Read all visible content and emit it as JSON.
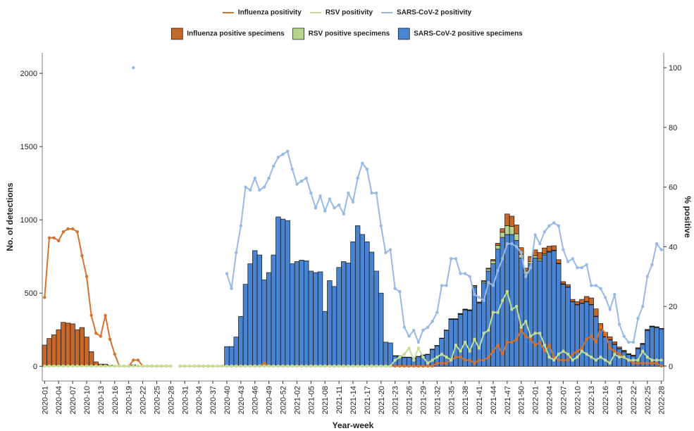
{
  "chart_data": {
    "type": "bar",
    "x_label": "Year-week",
    "y_label": "No. of detections",
    "y2_label": "% positive",
    "categories": [
      "2020-01",
      null,
      null,
      "2020-04",
      null,
      null,
      "2020-07",
      null,
      null,
      "2020-10",
      null,
      null,
      "2020-13",
      null,
      null,
      "2020-16",
      null,
      null,
      "2020-19",
      null,
      null,
      "2020-22",
      null,
      null,
      "2020-25",
      null,
      null,
      "2020-28",
      null,
      null,
      "2020-31",
      null,
      null,
      "2020-34",
      null,
      null,
      "2020-37",
      null,
      null,
      "2020-40",
      null,
      null,
      "2020-43",
      null,
      null,
      "2020-46",
      null,
      null,
      "2020-49",
      null,
      null,
      "2020-52",
      null,
      null,
      "2021-02",
      null,
      null,
      "2021-05",
      null,
      null,
      "2021-08",
      null,
      null,
      "2021-11",
      null,
      null,
      "2021-14",
      null,
      null,
      "2021-17",
      null,
      null,
      "2021-20",
      null,
      null,
      "2021-23",
      null,
      null,
      "2021-26",
      null,
      null,
      "2021-29",
      null,
      null,
      "2021-32",
      null,
      null,
      "2021-35",
      null,
      null,
      "2021-38",
      null,
      null,
      "2021-41",
      null,
      null,
      "2021-44",
      null,
      null,
      "2021-47",
      null,
      null,
      "2021-50",
      null,
      null,
      "2022-01",
      null,
      null,
      "2022-04",
      null,
      null,
      "2022-07",
      null,
      null,
      "2022-10",
      null,
      null,
      "2022-13",
      null,
      null,
      "2022-16",
      null,
      null,
      "2022-19",
      null,
      null,
      "2022-22",
      null,
      null,
      "2022-25",
      null,
      null,
      "2022-28"
    ],
    "ylim": [
      -100,
      2140
    ],
    "yticks": [
      0,
      500,
      1000,
      1500,
      2000
    ],
    "y2lim": [
      -5,
      105
    ],
    "y2ticks": [
      0,
      20,
      40,
      60,
      80,
      100
    ],
    "series": [
      {
        "name": "Influenza positivity",
        "type": "line",
        "axis": "y2",
        "color": "#d4722f",
        "values": [
          23,
          43,
          43,
          42,
          45,
          46,
          46,
          45,
          37,
          30,
          17,
          11,
          10,
          17,
          9,
          4,
          0,
          0,
          0,
          2,
          2,
          0,
          0,
          0,
          0,
          0,
          0,
          0,
          null,
          0,
          0,
          0,
          0,
          0,
          0,
          0,
          0,
          0,
          0,
          0,
          0,
          0,
          0,
          0,
          0,
          0,
          0,
          1,
          0,
          0,
          0,
          0,
          0,
          0,
          0,
          0,
          0,
          0,
          0,
          0,
          0,
          0,
          0,
          0,
          0,
          0,
          0,
          0,
          0,
          0,
          0,
          0,
          0,
          0,
          0,
          0,
          0,
          0,
          0,
          0,
          0,
          0,
          0,
          0,
          1,
          1,
          1,
          2,
          3,
          3,
          2,
          2,
          1,
          2,
          2,
          3,
          5,
          7,
          4,
          8,
          8,
          9,
          12,
          10,
          9,
          7,
          8,
          5,
          7,
          3,
          2,
          2,
          2,
          4,
          5,
          6,
          9,
          10,
          8,
          13,
          11,
          6,
          5,
          4,
          3,
          2,
          1,
          1,
          1,
          1,
          1,
          1,
          0
        ]
      },
      {
        "name": "RSV positivity",
        "type": "line",
        "axis": "y2",
        "color": "#c2df98",
        "values": [
          0,
          0,
          0,
          0,
          0,
          0,
          0,
          0,
          0,
          0,
          0,
          0,
          0,
          0,
          0,
          0,
          0,
          0,
          0,
          0,
          0,
          0,
          0,
          0,
          0,
          0,
          0,
          0,
          null,
          0,
          0,
          0,
          0,
          0,
          0,
          0,
          0,
          0,
          0,
          0,
          0,
          0,
          0,
          0,
          0,
          0,
          0,
          0,
          0,
          0,
          0,
          0,
          0,
          0,
          0,
          0,
          0,
          0,
          0,
          0,
          0,
          0,
          0,
          0,
          0,
          0,
          0,
          0,
          0,
          0,
          0,
          0,
          0,
          0,
          0,
          2,
          3,
          4,
          6,
          2,
          6,
          3,
          1,
          2,
          3,
          4,
          3,
          2,
          7,
          5,
          8,
          5,
          9,
          6,
          11,
          12,
          18,
          18,
          22,
          25,
          19,
          20,
          13,
          15,
          10,
          11,
          11,
          7,
          3,
          2,
          4,
          5,
          4,
          2,
          3,
          5,
          4,
          3,
          2,
          3,
          2,
          1,
          4,
          3,
          3,
          2,
          2,
          2,
          5,
          3,
          2,
          2,
          2
        ]
      },
      {
        "name": "SARS-CoV-2 positivity",
        "type": "line",
        "axis": "y2",
        "color": "#98b9e6",
        "values": [
          null,
          null,
          null,
          null,
          null,
          null,
          null,
          null,
          null,
          null,
          null,
          null,
          null,
          null,
          null,
          null,
          null,
          null,
          null,
          100,
          null,
          null,
          null,
          null,
          null,
          null,
          null,
          null,
          null,
          null,
          null,
          null,
          null,
          null,
          null,
          null,
          null,
          null,
          null,
          31,
          26,
          38,
          47,
          60,
          59,
          63,
          59,
          60,
          63,
          67,
          70,
          71,
          72,
          66,
          61,
          62,
          63,
          58,
          53,
          57,
          52,
          56,
          53,
          54,
          51,
          58,
          55,
          63,
          68,
          66,
          58,
          58,
          47,
          38,
          39,
          26,
          25,
          13,
          10,
          12,
          8,
          12,
          13,
          15,
          18,
          27,
          27,
          36,
          36,
          31,
          31,
          30,
          24,
          23,
          22,
          28,
          27,
          32,
          36,
          41,
          41,
          40,
          38,
          30,
          33,
          44,
          41,
          45,
          47,
          48,
          47,
          39,
          35,
          36,
          33,
          33,
          34,
          27,
          27,
          26,
          23,
          19,
          24,
          14,
          10,
          8,
          8,
          16,
          20,
          30,
          34,
          41,
          39
        ]
      },
      {
        "name": "Influenza positive specimens",
        "type": "bar",
        "color": "#c4682c",
        "values": [
          145,
          190,
          215,
          250,
          300,
          295,
          290,
          250,
          265,
          200,
          100,
          30,
          15,
          15,
          8,
          5,
          0,
          0,
          0,
          0,
          0,
          0,
          0,
          0,
          0,
          0,
          0,
          0,
          0,
          0,
          0,
          0,
          0,
          0,
          0,
          0,
          0,
          0,
          0,
          0,
          0,
          0,
          0,
          0,
          0,
          0,
          0,
          0,
          0,
          0,
          0,
          0,
          0,
          0,
          0,
          0,
          0,
          0,
          0,
          0,
          0,
          0,
          0,
          0,
          0,
          0,
          0,
          0,
          0,
          0,
          0,
          0,
          0,
          0,
          0,
          0,
          0,
          0,
          0,
          0,
          0,
          0,
          0,
          0,
          0,
          0,
          0,
          2,
          2,
          3,
          3,
          3,
          4,
          4,
          5,
          5,
          10,
          15,
          25,
          80,
          70,
          60,
          45,
          20,
          35,
          40,
          45,
          40,
          35,
          30,
          25,
          15,
          15,
          15,
          20,
          25,
          35,
          45,
          50,
          40,
          30,
          20,
          15,
          10,
          8,
          5,
          5,
          5,
          5,
          5,
          3,
          3,
          2
        ]
      },
      {
        "name": "RSV positive specimens",
        "type": "bar",
        "color": "#b6d38f",
        "values": [
          0,
          0,
          0,
          0,
          0,
          0,
          0,
          0,
          0,
          0,
          0,
          0,
          0,
          0,
          0,
          0,
          0,
          0,
          0,
          0,
          0,
          0,
          0,
          0,
          0,
          0,
          0,
          0,
          0,
          0,
          0,
          0,
          0,
          0,
          0,
          0,
          0,
          0,
          0,
          0,
          0,
          0,
          0,
          0,
          0,
          0,
          0,
          0,
          0,
          0,
          0,
          0,
          0,
          0,
          0,
          0,
          0,
          0,
          0,
          0,
          0,
          0,
          0,
          0,
          0,
          0,
          0,
          0,
          0,
          0,
          0,
          0,
          0,
          0,
          0,
          3,
          3,
          3,
          3,
          3,
          3,
          3,
          3,
          3,
          3,
          3,
          3,
          3,
          3,
          3,
          3,
          3,
          8,
          5,
          10,
          15,
          20,
          25,
          35,
          60,
          55,
          45,
          25,
          20,
          15,
          15,
          12,
          8,
          5,
          3,
          3,
          3,
          3,
          2,
          2,
          2,
          2,
          2,
          2,
          2,
          2,
          2,
          2,
          2,
          2,
          2,
          2,
          2,
          2,
          2,
          2,
          2,
          2
        ]
      },
      {
        "name": "SARS-CoV-2 positive specimens",
        "type": "bar",
        "color": "#4a83cf",
        "values": [
          0,
          0,
          0,
          0,
          0,
          0,
          0,
          0,
          0,
          0,
          0,
          0,
          0,
          0,
          0,
          0,
          0,
          0,
          0,
          10,
          0,
          0,
          0,
          0,
          0,
          0,
          0,
          0,
          0,
          0,
          0,
          0,
          0,
          0,
          0,
          0,
          0,
          0,
          0,
          135,
          135,
          200,
          340,
          560,
          700,
          790,
          760,
          590,
          640,
          760,
          1020,
          1005,
          995,
          700,
          715,
          725,
          720,
          650,
          640,
          645,
          375,
          585,
          545,
          675,
          715,
          705,
          850,
          960,
          900,
          850,
          780,
          650,
          500,
          165,
          160,
          70,
          70,
          60,
          60,
          55,
          65,
          75,
          80,
          115,
          140,
          190,
          245,
          320,
          320,
          355,
          385,
          380,
          540,
          430,
          570,
          650,
          700,
          800,
          880,
          900,
          900,
          860,
          740,
          630,
          700,
          740,
          720,
          760,
          780,
          790,
          700,
          560,
          540,
          440,
          420,
          430,
          440,
          420,
          340,
          250,
          200,
          180,
          150,
          120,
          100,
          80,
          70,
          120,
          150,
          245,
          270,
          265,
          255
        ]
      }
    ]
  }
}
